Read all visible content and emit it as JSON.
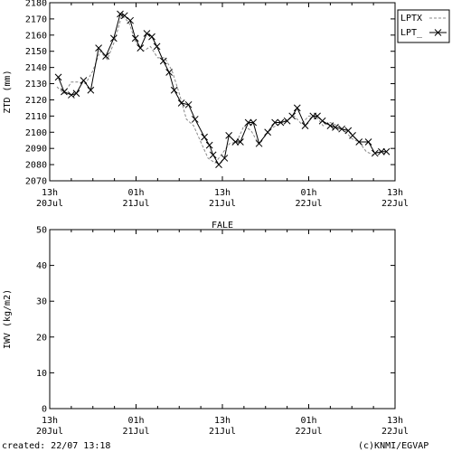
{
  "footer": {
    "created": "created: 22/07 13:18",
    "credit": "(c)KNMI/EGVAP"
  },
  "chart_data": [
    {
      "type": "line",
      "title": "",
      "xlabel": "",
      "ylabel": "ZTD (mm)",
      "ylim": [
        2070,
        2180
      ],
      "yticks": [
        2070,
        2080,
        2090,
        2100,
        2110,
        2120,
        2130,
        2140,
        2150,
        2160,
        2170,
        2180
      ],
      "xlim": [
        0,
        48
      ],
      "xunit": "hours since 20Jul 13h",
      "xticks": [
        {
          "x": 0,
          "top": "13h",
          "bottom": "20Jul"
        },
        {
          "x": 12,
          "top": "01h",
          "bottom": "21Jul"
        },
        {
          "x": 24,
          "top": "13h",
          "bottom": "21Jul"
        },
        {
          "x": 36,
          "top": "01h",
          "bottom": "22Jul"
        },
        {
          "x": 48,
          "top": "13h",
          "bottom": "22Jul"
        }
      ],
      "grid": false,
      "legend_position": "outside-right",
      "series": [
        {
          "name": "LPTX",
          "style": "dashed",
          "color": "#888888",
          "x": [
            1,
            2,
            3,
            4,
            5,
            6,
            7,
            8,
            9,
            10,
            11,
            12,
            13,
            14,
            15,
            16,
            17,
            18,
            19,
            20,
            21,
            22,
            23,
            24,
            25,
            26,
            27,
            28,
            29,
            30,
            31,
            32,
            33,
            34,
            35,
            36,
            37,
            38,
            39,
            40,
            41,
            42,
            43,
            44,
            45,
            46
          ],
          "y": [
            2128,
            2124,
            2131,
            2131,
            2130,
            2138,
            2150,
            2145,
            2156,
            2172,
            2168,
            2155,
            2150,
            2153,
            2146,
            2146,
            2138,
            2124,
            2108,
            2104,
            2094,
            2084,
            2081,
            2087,
            2093,
            2094,
            2104,
            2101,
            2093,
            2098,
            2103,
            2105,
            2108,
            2110,
            2105,
            2110,
            2110,
            2104,
            2106,
            2104,
            2101,
            2096,
            2094,
            2088,
            2086,
            2089
          ]
        },
        {
          "name": "LPT_",
          "style": "solid-cross",
          "color": "#000000",
          "x": [
            1.2,
            2,
            3,
            3.7,
            4.7,
            5.7,
            6.8,
            7.8,
            8.9,
            9.8,
            10.4,
            11.2,
            11.9,
            12.6,
            13.5,
            14.2,
            14.9,
            15.8,
            16.6,
            17.3,
            18.3,
            19.3,
            20.2,
            21.5,
            22.2,
            22.7,
            23.5,
            24.3,
            24.9,
            25.8,
            26.5,
            27.6,
            28.3,
            29.1,
            30.3,
            31.3,
            32.1,
            33.0,
            33.7,
            34.4,
            35.5,
            36.6,
            37.2,
            37.9,
            39.0,
            39.7,
            40.6,
            41.5,
            42.1,
            43.0,
            44.3,
            45.2,
            46.1,
            46.8
          ],
          "y": [
            2134,
            2125,
            2123,
            2124,
            2132,
            2126,
            2152,
            2147,
            2158,
            2173,
            2172,
            2169,
            2158,
            2152,
            2161,
            2159,
            2153,
            2144,
            2137,
            2126,
            2118,
            2117,
            2108,
            2097,
            2092,
            2086,
            2080,
            2084,
            2098,
            2094,
            2094,
            2106,
            2106,
            2093,
            2100,
            2106,
            2106,
            2107,
            2110,
            2115,
            2104,
            2110,
            2110,
            2107,
            2104,
            2103,
            2102,
            2101,
            2098,
            2094,
            2094,
            2087,
            2088,
            2088
          ]
        }
      ]
    },
    {
      "type": "line",
      "title": "FALE",
      "xlabel": "",
      "ylabel": "IWV (kg/m2)",
      "ylim": [
        0,
        50
      ],
      "yticks": [
        0,
        10,
        20,
        30,
        40,
        50
      ],
      "xlim": [
        0,
        48
      ],
      "xunit": "hours since 20Jul 13h",
      "xticks": [
        {
          "x": 0,
          "top": "13h",
          "bottom": "20Jul"
        },
        {
          "x": 12,
          "top": "01h",
          "bottom": "21Jul"
        },
        {
          "x": 24,
          "top": "13h",
          "bottom": "21Jul"
        },
        {
          "x": 36,
          "top": "01h",
          "bottom": "22Jul"
        },
        {
          "x": 48,
          "top": "13h",
          "bottom": "22Jul"
        }
      ],
      "grid": false,
      "series": []
    }
  ]
}
